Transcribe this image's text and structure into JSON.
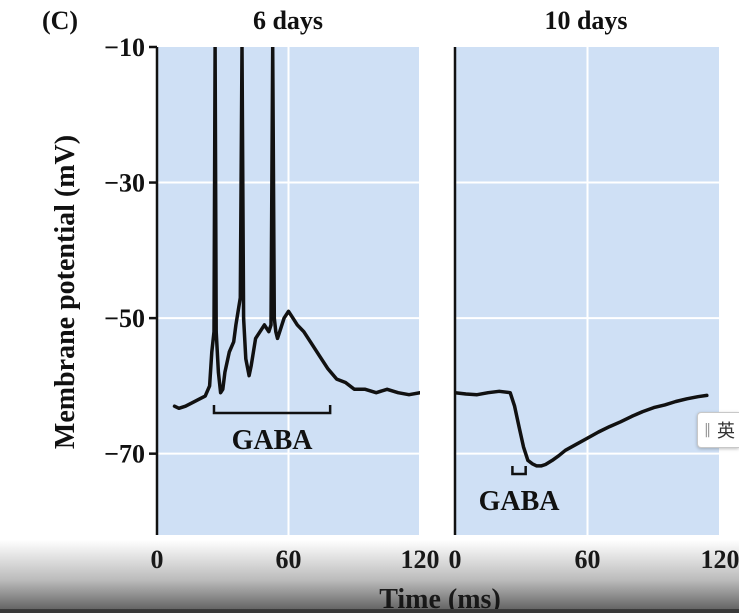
{
  "figure": {
    "panel_label": "(C)",
    "shared_xlabel": "Time (ms)",
    "shared_ylabel": "Membrane potential (mV)"
  },
  "colors": {
    "panel_bg": "#cfe0f5",
    "grid": "#ffffff",
    "trace": "#111111",
    "axis": "#111111"
  },
  "chart_data": [
    {
      "type": "line",
      "title": "6 days",
      "xlabel": "Time (ms)",
      "ylabel": "Membrane potential (mV)",
      "xlim": [
        0,
        120
      ],
      "ylim": [
        -82,
        -10
      ],
      "xticks": [
        0,
        60,
        120
      ],
      "xtick_labels": [
        "0",
        "60",
        "120"
      ],
      "yticks": [
        -70,
        -50,
        -30,
        -10
      ],
      "ytick_labels": [
        "−70",
        "−50",
        "−30",
        "−10"
      ],
      "grid": true,
      "series": [
        {
          "x": [
            8,
            10,
            13,
            16,
            19,
            22,
            24,
            25,
            26,
            26.5,
            27,
            28,
            29,
            30,
            31,
            33,
            35,
            36,
            37,
            38,
            38.8,
            39.5,
            40.5,
            42,
            43,
            44,
            45,
            47,
            49,
            51,
            52,
            52.8,
            53.5,
            54.2,
            55,
            56,
            58,
            60,
            62,
            64,
            67,
            70,
            74,
            78,
            82,
            86,
            90,
            95,
            100,
            105,
            110,
            115,
            120
          ],
          "y": [
            -63,
            -63.3,
            -63,
            -62.5,
            -62,
            -61.5,
            -60,
            -55,
            -52,
            -10,
            -52,
            -58,
            -61,
            -60.5,
            -58,
            -55,
            -53.5,
            -51,
            -49,
            -47,
            -10,
            -50,
            -56,
            -58.5,
            -57,
            -55,
            -53,
            -52,
            -51,
            -52,
            -51,
            -10,
            -50,
            -52,
            -53,
            -52,
            -50,
            -49,
            -50,
            -51,
            -52,
            -53.5,
            -55.5,
            -57.5,
            -59,
            -59.5,
            -60.5,
            -60.5,
            -61,
            -60.5,
            -61,
            -61.3,
            -61
          ]
        }
      ],
      "annotations": [
        {
          "text": "GABA",
          "bracket_x": [
            26,
            79
          ],
          "bracket_y": -64
        }
      ]
    },
    {
      "type": "line",
      "title": "10 days",
      "xlabel": "Time (ms)",
      "xlim": [
        0,
        120
      ],
      "ylim": [
        -82,
        -10
      ],
      "xticks": [
        0,
        60,
        120
      ],
      "xtick_labels": [
        "0",
        "60",
        "120"
      ],
      "grid": true,
      "series": [
        {
          "x": [
            0,
            5,
            10,
            15,
            20,
            25,
            27,
            29,
            31,
            33,
            35,
            37,
            39,
            41,
            44,
            47,
            50,
            55,
            60,
            65,
            70,
            75,
            80,
            85,
            90,
            95,
            100,
            105,
            110,
            114
          ],
          "y": [
            -61,
            -61.2,
            -61.3,
            -61,
            -60.8,
            -61,
            -63,
            -66,
            -69,
            -71,
            -71.5,
            -71.8,
            -71.8,
            -71.6,
            -71,
            -70.3,
            -69.5,
            -68.6,
            -67.7,
            -66.8,
            -66,
            -65.3,
            -64.5,
            -63.8,
            -63.2,
            -62.8,
            -62.3,
            -61.9,
            -61.6,
            -61.4
          ]
        }
      ],
      "annotations": [
        {
          "text": "GABA",
          "bracket_x": [
            26,
            32
          ],
          "bracket_y": -73
        }
      ]
    }
  ],
  "overlay": {
    "side_widget_text": "英",
    "video_progress": 0.0
  }
}
